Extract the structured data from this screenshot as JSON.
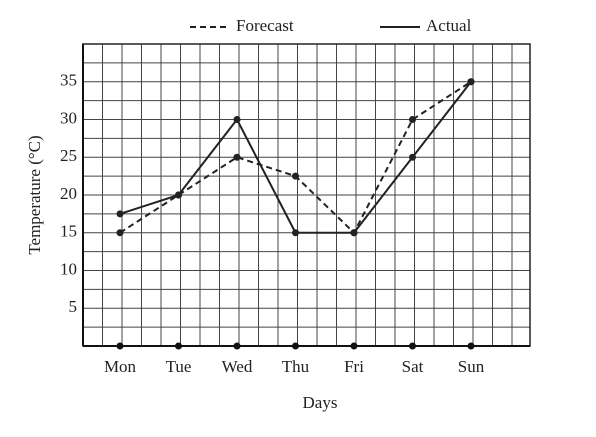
{
  "chart_data": {
    "type": "line",
    "x_label": "Days",
    "y_label": "Temperature (°C)",
    "categories": [
      "Mon",
      "Tue",
      "Wed",
      "Thu",
      "Fri",
      "Sat",
      "Sun"
    ],
    "series": [
      {
        "name": "Forecast",
        "color": "#222222",
        "dash": true,
        "values": [
          15,
          20,
          25,
          22.5,
          15,
          30,
          35
        ]
      },
      {
        "name": "Actual",
        "color": "#222222",
        "dash": false,
        "values": [
          17.5,
          20,
          30,
          15,
          15,
          25,
          35
        ]
      }
    ],
    "ylim": [
      0,
      40
    ],
    "yticks": [
      5,
      10,
      15,
      20,
      25,
      30,
      35
    ],
    "grid": true,
    "legend": "top"
  }
}
